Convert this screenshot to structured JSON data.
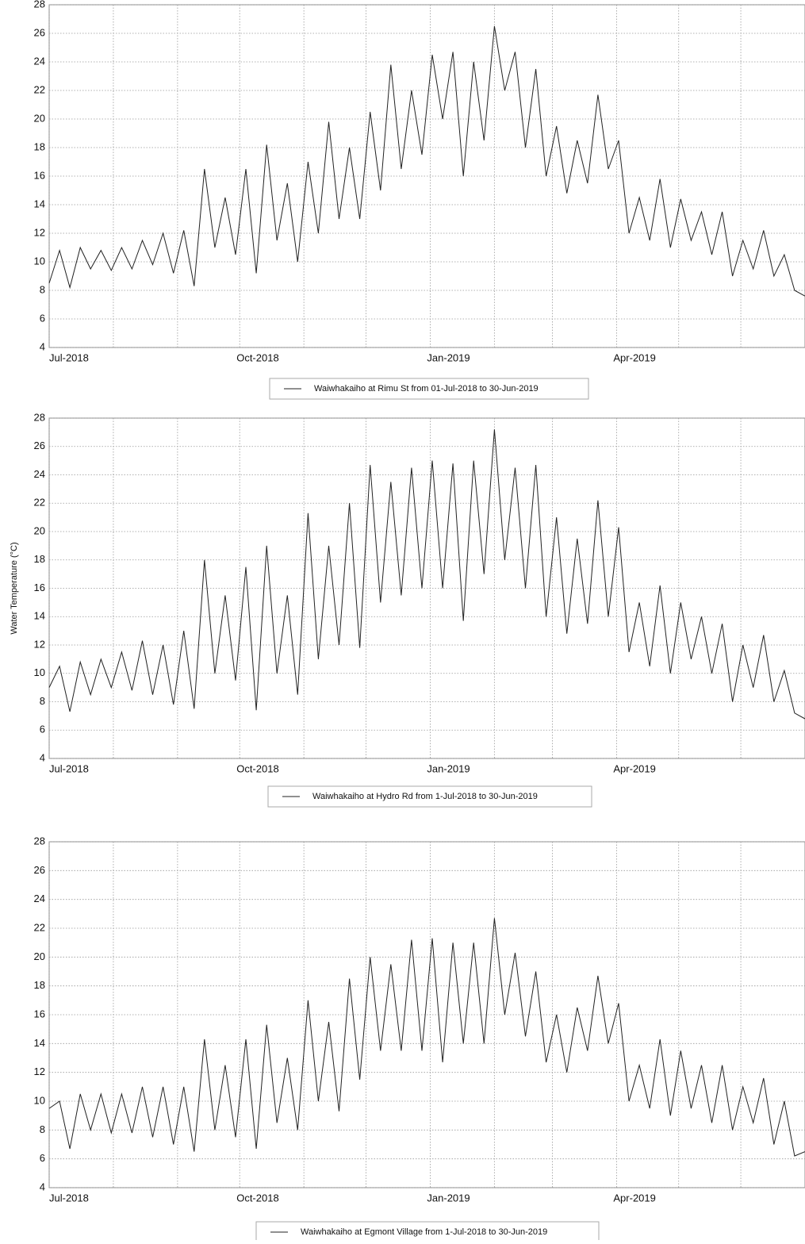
{
  "chart_data": [
    {
      "type": "line",
      "series": [
        {
          "name": "Waiwhakaiho at Rimu St from 01-Jul-2018 to 30-Jun-2019",
          "color": "#222222",
          "values": [
            8.5,
            10.8,
            8.2,
            11,
            9.5,
            10.8,
            9.4,
            11,
            9.5,
            11.5,
            9.8,
            12,
            9.2,
            12.2,
            8.3,
            16.5,
            11,
            14.5,
            10.5,
            16.5,
            9.2,
            18.2,
            11.5,
            15.5,
            10,
            17,
            12,
            19.8,
            13,
            18,
            13,
            20.5,
            15,
            23.8,
            16.5,
            22,
            17.5,
            24.5,
            20,
            24.7,
            16,
            24,
            18.5,
            26.5,
            22,
            24.7,
            18,
            23.5,
            16,
            19.5,
            14.8,
            18.5,
            15.5,
            21.7,
            16.5,
            18.5,
            12,
            14.5,
            11.5,
            15.8,
            11,
            14.4,
            11.5,
            13.5,
            10.5,
            13.5,
            9,
            11.5,
            9.5,
            12.2,
            9,
            10.5,
            8,
            7.6
          ]
        }
      ],
      "x": [
        0,
        5,
        10,
        15,
        20,
        25,
        30,
        35,
        40,
        45,
        50,
        55,
        60,
        65,
        70,
        75,
        80,
        85,
        90,
        95,
        100,
        105,
        110,
        115,
        120,
        125,
        130,
        135,
        140,
        145,
        150,
        155,
        160,
        165,
        170,
        175,
        180,
        185,
        190,
        195,
        200,
        205,
        210,
        215,
        220,
        225,
        230,
        235,
        240,
        245,
        250,
        255,
        260,
        265,
        270,
        275,
        280,
        285,
        290,
        295,
        300,
        305,
        310,
        315,
        320,
        325,
        330,
        335,
        340,
        345,
        350,
        355,
        360,
        365
      ],
      "xlim": [
        0,
        365
      ],
      "xticks": [
        {
          "value": 0,
          "label": "Jul-2018"
        },
        {
          "value": 92,
          "label": "Oct-2018"
        },
        {
          "value": 184,
          "label": "Jan-2019"
        },
        {
          "value": 274,
          "label": "Apr-2019"
        }
      ],
      "xgrid_ticks": [
        31,
        62,
        123,
        153,
        215,
        243,
        304,
        334
      ],
      "ylim": [
        4,
        28
      ],
      "yticks": [
        4,
        6,
        8,
        10,
        12,
        14,
        16,
        18,
        20,
        22,
        24,
        26,
        28
      ],
      "grid": true
    },
    {
      "type": "line",
      "ylabel": "Water Temperature (°C)",
      "series": [
        {
          "name": "Waiwhakaiho at Hydro Rd from  1-Jul-2018 to 30-Jun-2019",
          "color": "#222222",
          "values": [
            9,
            10.5,
            7.3,
            10.8,
            8.5,
            11,
            9,
            11.5,
            8.8,
            12.3,
            8.5,
            12,
            7.8,
            13,
            7.5,
            18,
            10,
            15.5,
            9.5,
            17.5,
            7.4,
            19,
            10,
            15.5,
            8.5,
            21.3,
            11,
            19,
            12,
            22,
            11.8,
            24.7,
            15,
            23.5,
            15.5,
            24.5,
            16,
            25,
            16,
            24.8,
            13.7,
            25,
            17,
            27.2,
            18,
            24.5,
            16,
            24.7,
            14,
            21,
            12.8,
            19.5,
            13.5,
            22.2,
            14,
            20.3,
            11.5,
            15,
            10.5,
            16.2,
            10,
            15,
            11,
            14,
            10,
            13.5,
            8,
            12,
            9,
            12.7,
            8,
            10.2,
            7.2,
            6.8
          ]
        }
      ],
      "x": [
        0,
        5,
        10,
        15,
        20,
        25,
        30,
        35,
        40,
        45,
        50,
        55,
        60,
        65,
        70,
        75,
        80,
        85,
        90,
        95,
        100,
        105,
        110,
        115,
        120,
        125,
        130,
        135,
        140,
        145,
        150,
        155,
        160,
        165,
        170,
        175,
        180,
        185,
        190,
        195,
        200,
        205,
        210,
        215,
        220,
        225,
        230,
        235,
        240,
        245,
        250,
        255,
        260,
        265,
        270,
        275,
        280,
        285,
        290,
        295,
        300,
        305,
        310,
        315,
        320,
        325,
        330,
        335,
        340,
        345,
        350,
        355,
        360,
        365
      ],
      "xlim": [
        0,
        365
      ],
      "xticks": [
        {
          "value": 0,
          "label": "Jul-2018"
        },
        {
          "value": 92,
          "label": "Oct-2018"
        },
        {
          "value": 184,
          "label": "Jan-2019"
        },
        {
          "value": 274,
          "label": "Apr-2019"
        }
      ],
      "xgrid_ticks": [
        31,
        62,
        123,
        153,
        215,
        243,
        304,
        334
      ],
      "ylim": [
        4,
        28
      ],
      "yticks": [
        4,
        6,
        8,
        10,
        12,
        14,
        16,
        18,
        20,
        22,
        24,
        26,
        28
      ],
      "grid": true
    },
    {
      "type": "line",
      "series": [
        {
          "name": "Waiwhakaiho at Egmont Village from  1-Jul-2018 to 30-Jun-2019",
          "color": "#222222",
          "values": [
            9.5,
            10,
            6.7,
            10.5,
            8,
            10.5,
            7.8,
            10.5,
            7.8,
            11,
            7.5,
            11,
            7,
            11,
            6.5,
            14.3,
            8,
            12.5,
            7.5,
            14.3,
            6.7,
            15.3,
            8.5,
            13,
            8,
            17,
            10,
            15.5,
            9.3,
            18.5,
            11.5,
            20,
            13.5,
            19.5,
            13.5,
            21.2,
            13.5,
            21.3,
            12.7,
            21,
            14,
            21,
            14,
            22.7,
            16,
            20.3,
            14.5,
            19,
            12.7,
            16,
            12,
            16.5,
            13.5,
            18.7,
            14,
            16.8,
            10,
            12.5,
            9.5,
            14.3,
            9,
            13.5,
            9.5,
            12.5,
            8.5,
            12.5,
            8,
            11,
            8.5,
            11.6,
            7,
            10,
            6.2,
            6.5
          ]
        }
      ],
      "x": [
        0,
        5,
        10,
        15,
        20,
        25,
        30,
        35,
        40,
        45,
        50,
        55,
        60,
        65,
        70,
        75,
        80,
        85,
        90,
        95,
        100,
        105,
        110,
        115,
        120,
        125,
        130,
        135,
        140,
        145,
        150,
        155,
        160,
        165,
        170,
        175,
        180,
        185,
        190,
        195,
        200,
        205,
        210,
        215,
        220,
        225,
        230,
        235,
        240,
        245,
        250,
        255,
        260,
        265,
        270,
        275,
        280,
        285,
        290,
        295,
        300,
        305,
        310,
        315,
        320,
        325,
        330,
        335,
        340,
        345,
        350,
        355,
        360,
        365
      ],
      "xlim": [
        0,
        365
      ],
      "xticks": [
        {
          "value": 0,
          "label": "Jul-2018"
        },
        {
          "value": 92,
          "label": "Oct-2018"
        },
        {
          "value": 184,
          "label": "Jan-2019"
        },
        {
          "value": 274,
          "label": "Apr-2019"
        }
      ],
      "xgrid_ticks": [
        31,
        62,
        123,
        153,
        215,
        243,
        304,
        334
      ],
      "ylim": [
        4,
        28
      ],
      "yticks": [
        4,
        6,
        8,
        10,
        12,
        14,
        16,
        18,
        20,
        22,
        24,
        26,
        28
      ],
      "grid": true
    }
  ]
}
